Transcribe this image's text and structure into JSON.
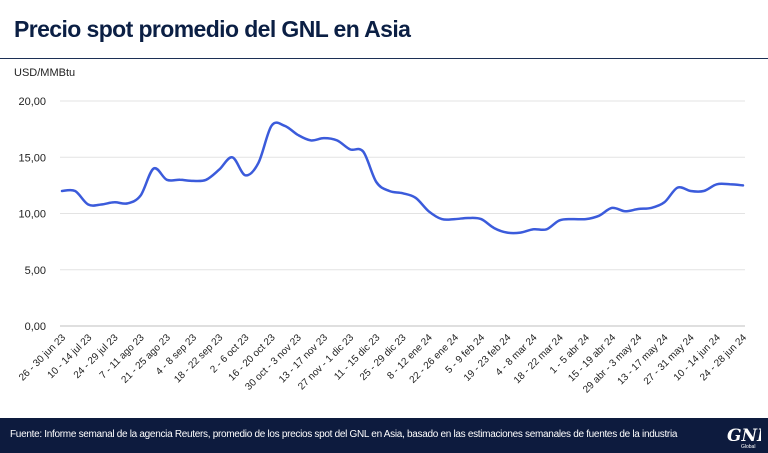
{
  "header": {
    "title": "Precio spot promedio del GNL en Asia",
    "unit_label": "USD/MMBtu"
  },
  "chart_data": {
    "type": "line",
    "title": "Precio spot promedio del GNL en Asia",
    "ylabel": "USD/MMBtu",
    "xlabel": "",
    "ylim": [
      0,
      20
    ],
    "yticks": [
      "0,00",
      "5,00",
      "10,00",
      "15,00",
      "20,00"
    ],
    "grid": true,
    "line_color": "#3b5bdb",
    "tick_labels": [
      "26 - 30 jun 23",
      "10 - 14 jul 23",
      "24 - 29 jul 23",
      "7 - 11 ago 23",
      "21 - 25 ago 23",
      "4 - 8 sep 23",
      "18 - 22 sep 23",
      "2 - 6 oct 23",
      "16 - 20 oct 23",
      "30 oct - 3 nov 23",
      "13 - 17 nov 23",
      "27 nov - 1 dic 23",
      "11 - 15 dic 23",
      "25 - 29 dic 23",
      "8 - 12 ene 24",
      "22 - 26 ene 24",
      "5 - 9 feb 24",
      "19 - 23 feb 24",
      "4 - 8 mar 24",
      "18 - 22 mar 24",
      "1 - 5 abr 24",
      "15 - 19 abr 24",
      "29 abr - 3 may 24",
      "13 - 17 may 24",
      "27 - 31 may 24",
      "10 - 14 jun 24",
      "24 - 28 jun 24"
    ],
    "series": [
      {
        "values": [
          12.0,
          12.0,
          10.8,
          10.8,
          11.0,
          10.9,
          11.6,
          14.0,
          13.0,
          13.0,
          12.9,
          13.0,
          13.9,
          15.0,
          13.4,
          14.5,
          17.8,
          17.8,
          17.0,
          16.5,
          16.7,
          16.5,
          15.7,
          15.5,
          12.8,
          12.0,
          11.8,
          11.4,
          10.2,
          9.5,
          9.5,
          9.6,
          9.5,
          8.7,
          8.3,
          8.3,
          8.6,
          8.6,
          9.4,
          9.5,
          9.5,
          9.8,
          10.5,
          10.2,
          10.4,
          10.5,
          11.0,
          12.3,
          12.0,
          12.0,
          12.6,
          12.6,
          12.5
        ]
      }
    ]
  },
  "footer": {
    "source": "Fuente: Informe semanal de la agencia Reuters, promedio de los precios spot del GNL en Asia, basado en las estimaciones semanales de fuentes de la industria",
    "logo_text": "GNL",
    "logo_subtext": "Global"
  }
}
